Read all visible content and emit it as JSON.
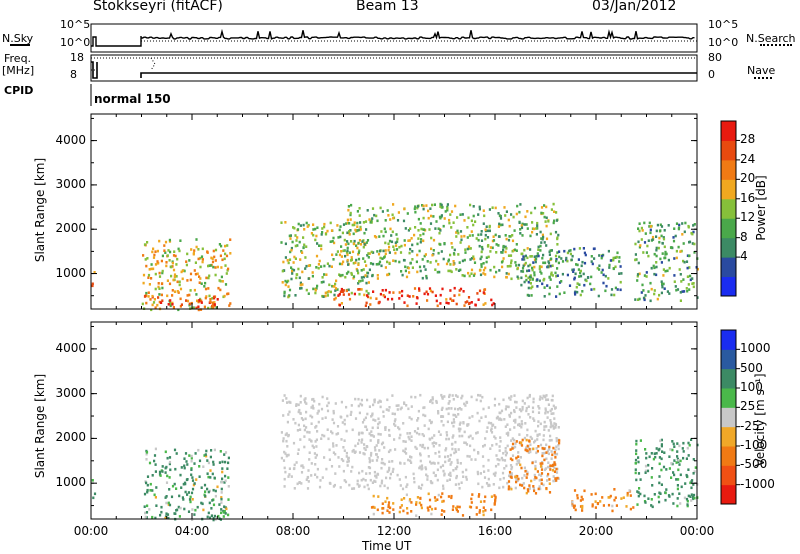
{
  "header": {
    "station": "Stokkseyri (fitACF)",
    "beam": "Beam 13",
    "date": "03/Jan/2012"
  },
  "strip_labels": {
    "nsky": "N.Sky",
    "nsearch": "N.Search",
    "freq": "Freq.",
    "freq_unit": "[MHz]",
    "nave": "Nave",
    "cpid": "CPID",
    "cpid_value": "normal 150",
    "nsky_ticks": [
      "10^5",
      "10^0"
    ],
    "nsearch_ticks": [
      "10^5",
      "10^0"
    ],
    "freq_ticks": [
      "18",
      "8"
    ],
    "nave_ticks": [
      "80",
      "0"
    ]
  },
  "colors": {
    "power": [
      "#1a2cf0",
      "#2a4aa0",
      "#3c8a64",
      "#4aa84a",
      "#86c03a",
      "#f0a820",
      "#f07a14",
      "#e84a10",
      "#e81a10"
    ],
    "velocity": [
      "#e81a10",
      "#f05014",
      "#f07a14",
      "#f0a828",
      "#c8c8c8",
      "#4ab84a",
      "#3c8a64",
      "#2a5aa0",
      "#1a2cf0"
    ]
  },
  "chart_data": [
    {
      "type": "heatmap",
      "title": "Power",
      "ylabel": "Slant Range [km]",
      "xlabel": "Time UT",
      "ylim": [
        200,
        4600
      ],
      "y_ticks": [
        "1000",
        "2000",
        "3000",
        "4000"
      ],
      "x_ticks": [
        "00:00",
        "04:00",
        "08:00",
        "12:00",
        "16:00",
        "20:00",
        "00:00"
      ],
      "colorbar": {
        "label": "Power [dB]",
        "ticks": [
          "28",
          "24",
          "20",
          "16",
          "12",
          "8",
          "4"
        ]
      },
      "echo_regions": [
        {
          "t_start": 0.0,
          "t_end": 0.15,
          "r_min": 650,
          "r_max": 1100,
          "power": 22
        },
        {
          "t_start": 2.0,
          "t_end": 5.5,
          "r_min": 200,
          "r_max": 1800,
          "power": 18
        },
        {
          "t_start": 2.0,
          "t_end": 5.0,
          "r_min": 250,
          "r_max": 550,
          "power": 26
        },
        {
          "t_start": 7.5,
          "t_end": 11.0,
          "r_min": 500,
          "r_max": 2200,
          "power": 14
        },
        {
          "t_start": 9.5,
          "t_end": 16.0,
          "r_min": 300,
          "r_max": 700,
          "power": 26
        },
        {
          "t_start": 10.0,
          "t_end": 18.5,
          "r_min": 900,
          "r_max": 2600,
          "power": 14
        },
        {
          "t_start": 17.0,
          "t_end": 21.0,
          "r_min": 500,
          "r_max": 1600,
          "power": 10
        },
        {
          "t_start": 21.5,
          "t_end": 24.0,
          "r_min": 400,
          "r_max": 2200,
          "power": 12
        }
      ]
    },
    {
      "type": "heatmap",
      "title": "Velocity",
      "ylabel": "Slant Range [km]",
      "xlabel": "Time UT",
      "ylim": [
        200,
        4600
      ],
      "y_ticks": [
        "1000",
        "2000",
        "3000",
        "4000"
      ],
      "x_ticks": [
        "00:00",
        "04:00",
        "08:00",
        "12:00",
        "16:00",
        "20:00",
        "00:00"
      ],
      "colorbar": {
        "label": "Velocity [m s⁻¹]",
        "ticks": [
          "1000",
          "500",
          "100",
          "25",
          "-25",
          "-100",
          "-500",
          "-1000"
        ]
      },
      "echo_regions": [
        {
          "t_start": 0.0,
          "t_end": 0.15,
          "r_min": 650,
          "r_max": 1100,
          "velocity": 50
        },
        {
          "t_start": 2.0,
          "t_end": 5.5,
          "r_min": 200,
          "r_max": 1800,
          "velocity": 150
        },
        {
          "t_start": 7.5,
          "t_end": 18.5,
          "r_min": 900,
          "r_max": 3000,
          "velocity": 0
        },
        {
          "t_start": 11.0,
          "t_end": 16.0,
          "r_min": 300,
          "r_max": 800,
          "velocity": -200
        },
        {
          "t_start": 16.5,
          "t_end": 18.5,
          "r_min": 800,
          "r_max": 2000,
          "velocity": -250
        },
        {
          "t_start": 19.0,
          "t_end": 21.5,
          "r_min": 400,
          "r_max": 900,
          "velocity": -200
        },
        {
          "t_start": 21.5,
          "t_end": 24.0,
          "r_min": 500,
          "r_max": 2000,
          "velocity": 200
        }
      ]
    }
  ]
}
